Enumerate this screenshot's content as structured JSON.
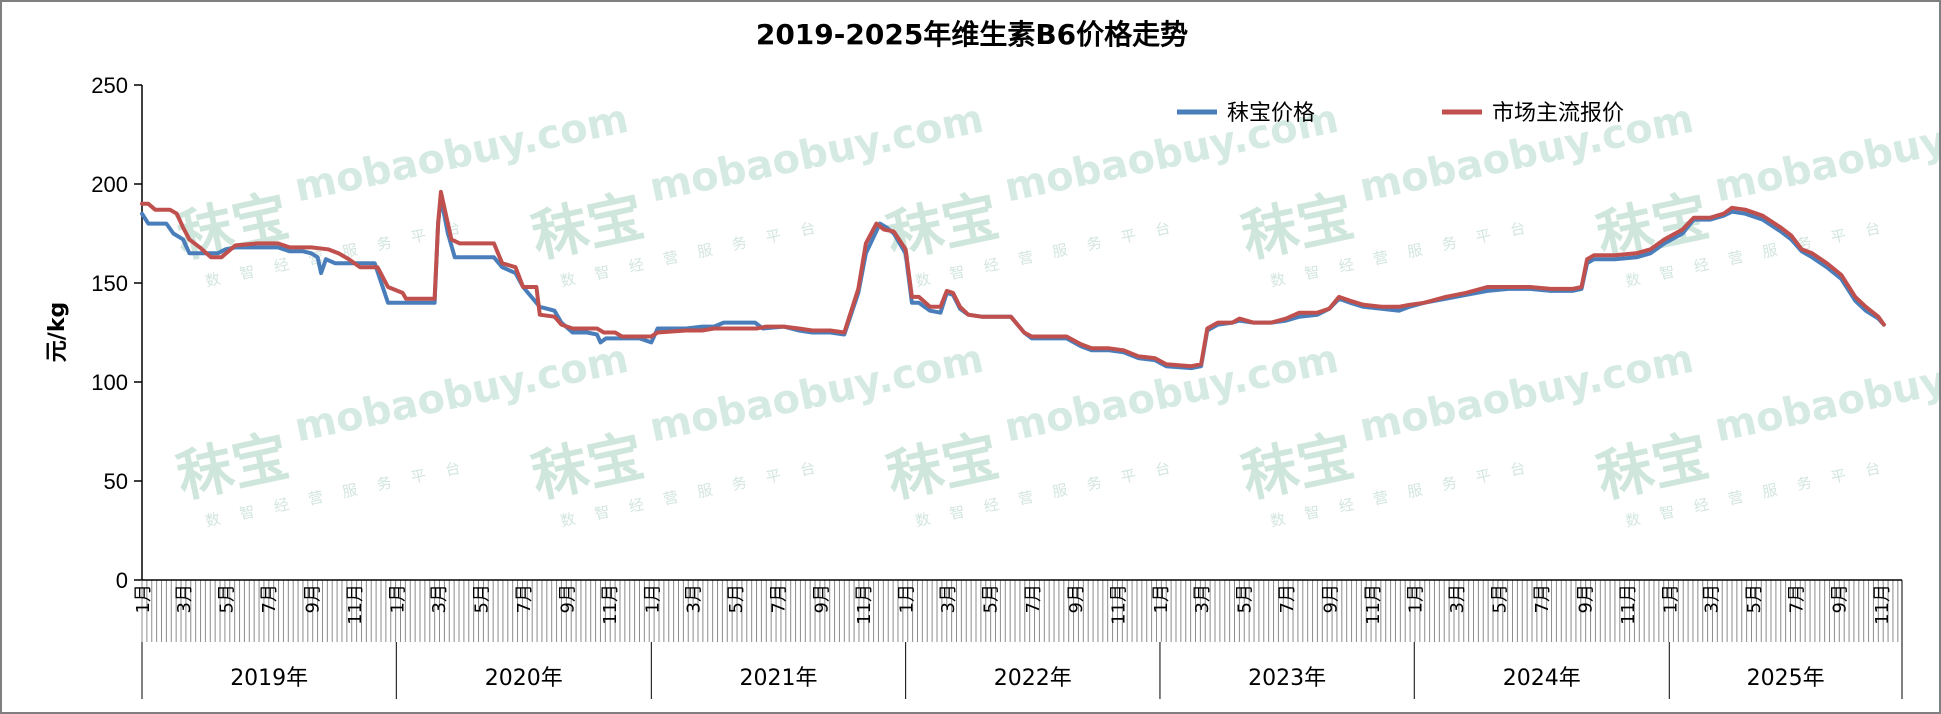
{
  "chart_data": {
    "type": "line",
    "title": "2019-2025年维生素B6价格走势",
    "ylabel": "元/kg",
    "ylim": [
      0,
      250
    ],
    "yticks": [
      0,
      50,
      100,
      150,
      200,
      250
    ],
    "x_start": "2019-01",
    "x_end": "2025-11",
    "x_unit": "month",
    "month_tick_labels": [
      "1月",
      "3月",
      "5月",
      "7月",
      "9月",
      "11月"
    ],
    "year_labels": [
      "2019年",
      "2020年",
      "2021年",
      "2022年",
      "2023年",
      "2024年",
      "2025年"
    ],
    "legend_position": "top-right",
    "series": [
      {
        "name": "秣宝价格",
        "color": "#4a7ebb",
        "points": [
          [
            "2019-01-01",
            185
          ],
          [
            "2019-01-10",
            180
          ],
          [
            "2019-02-05",
            180
          ],
          [
            "2019-02-15",
            175
          ],
          [
            "2019-03-01",
            172
          ],
          [
            "2019-03-10",
            165
          ],
          [
            "2019-04-01",
            165
          ],
          [
            "2019-04-20",
            165
          ],
          [
            "2019-05-01",
            167
          ],
          [
            "2019-05-15",
            168
          ],
          [
            "2019-06-15",
            168
          ],
          [
            "2019-07-15",
            168
          ],
          [
            "2019-08-01",
            166
          ],
          [
            "2019-08-20",
            166
          ],
          [
            "2019-09-01",
            165
          ],
          [
            "2019-09-10",
            163
          ],
          [
            "2019-09-15",
            155
          ],
          [
            "2019-09-22",
            162
          ],
          [
            "2019-10-05",
            160
          ],
          [
            "2019-11-01",
            160
          ],
          [
            "2019-12-01",
            160
          ],
          [
            "2019-12-20",
            140
          ],
          [
            "2020-01-15",
            140
          ],
          [
            "2020-02-05",
            140
          ],
          [
            "2020-02-25",
            140
          ],
          [
            "2020-03-01",
            180
          ],
          [
            "2020-03-05",
            193
          ],
          [
            "2020-03-15",
            175
          ],
          [
            "2020-03-25",
            163
          ],
          [
            "2020-05-01",
            163
          ],
          [
            "2020-05-20",
            163
          ],
          [
            "2020-06-01",
            158
          ],
          [
            "2020-06-20",
            155
          ],
          [
            "2020-07-01",
            148
          ],
          [
            "2020-07-25",
            138
          ],
          [
            "2020-08-15",
            136
          ],
          [
            "2020-08-25",
            130
          ],
          [
            "2020-09-10",
            125
          ],
          [
            "2020-10-01",
            125
          ],
          [
            "2020-10-15",
            124
          ],
          [
            "2020-10-20",
            120
          ],
          [
            "2020-10-28",
            122
          ],
          [
            "2020-11-15",
            122
          ],
          [
            "2020-12-15",
            122
          ],
          [
            "2021-01-01",
            120
          ],
          [
            "2021-01-10",
            127
          ],
          [
            "2021-02-20",
            127
          ],
          [
            "2021-03-15",
            128
          ],
          [
            "2021-04-01",
            128
          ],
          [
            "2021-04-15",
            130
          ],
          [
            "2021-05-30",
            130
          ],
          [
            "2021-06-10",
            127
          ],
          [
            "2021-07-10",
            128
          ],
          [
            "2021-08-01",
            126
          ],
          [
            "2021-08-20",
            125
          ],
          [
            "2021-09-15",
            125
          ],
          [
            "2021-10-05",
            124
          ],
          [
            "2021-10-25",
            145
          ],
          [
            "2021-11-05",
            165
          ],
          [
            "2021-11-25",
            180
          ],
          [
            "2021-12-05",
            178
          ],
          [
            "2021-12-15",
            175
          ],
          [
            "2022-01-01",
            165
          ],
          [
            "2022-01-10",
            140
          ],
          [
            "2022-01-20",
            140
          ],
          [
            "2022-02-05",
            136
          ],
          [
            "2022-02-20",
            135
          ],
          [
            "2022-03-01",
            145
          ],
          [
            "2022-03-10",
            144
          ],
          [
            "2022-03-20",
            137
          ],
          [
            "2022-04-01",
            134
          ],
          [
            "2022-04-20",
            133
          ],
          [
            "2022-06-01",
            133
          ],
          [
            "2022-06-20",
            125
          ],
          [
            "2022-07-01",
            122
          ],
          [
            "2022-08-01",
            122
          ],
          [
            "2022-08-20",
            122
          ],
          [
            "2022-09-10",
            118
          ],
          [
            "2022-09-25",
            116
          ],
          [
            "2022-10-20",
            116
          ],
          [
            "2022-11-10",
            115
          ],
          [
            "2022-12-01",
            112
          ],
          [
            "2022-12-25",
            111
          ],
          [
            "2023-01-10",
            108
          ],
          [
            "2023-02-15",
            107
          ],
          [
            "2023-03-01",
            108
          ],
          [
            "2023-03-10",
            126
          ],
          [
            "2023-03-25",
            129
          ],
          [
            "2023-04-15",
            130
          ],
          [
            "2023-04-25",
            131
          ],
          [
            "2023-05-15",
            130
          ],
          [
            "2023-06-10",
            130
          ],
          [
            "2023-07-01",
            131
          ],
          [
            "2023-07-20",
            133
          ],
          [
            "2023-08-15",
            134
          ],
          [
            "2023-09-01",
            137
          ],
          [
            "2023-09-15",
            142
          ],
          [
            "2023-10-01",
            140
          ],
          [
            "2023-10-20",
            138
          ],
          [
            "2023-11-15",
            137
          ],
          [
            "2023-12-10",
            136
          ],
          [
            "2023-12-25",
            138
          ],
          [
            "2024-01-15",
            140
          ],
          [
            "2024-02-15",
            142
          ],
          [
            "2024-03-15",
            144
          ],
          [
            "2024-04-15",
            146
          ],
          [
            "2024-05-15",
            147
          ],
          [
            "2024-06-15",
            147
          ],
          [
            "2024-07-15",
            146
          ],
          [
            "2024-08-15",
            146
          ],
          [
            "2024-08-28",
            147
          ],
          [
            "2024-09-05",
            160
          ],
          [
            "2024-09-15",
            162
          ],
          [
            "2024-10-15",
            162
          ],
          [
            "2024-11-15",
            163
          ],
          [
            "2024-12-05",
            165
          ],
          [
            "2024-12-25",
            170
          ],
          [
            "2025-01-20",
            175
          ],
          [
            "2025-02-05",
            182
          ],
          [
            "2025-03-01",
            182
          ],
          [
            "2025-03-20",
            184
          ],
          [
            "2025-04-01",
            186
          ],
          [
            "2025-04-20",
            185
          ],
          [
            "2025-05-15",
            182
          ],
          [
            "2025-06-10",
            176
          ],
          [
            "2025-06-25",
            172
          ],
          [
            "2025-07-10",
            166
          ],
          [
            "2025-07-25",
            163
          ],
          [
            "2025-08-15",
            158
          ],
          [
            "2025-09-05",
            152
          ],
          [
            "2025-09-25",
            141
          ],
          [
            "2025-10-10",
            136
          ],
          [
            "2025-10-28",
            132
          ],
          [
            "2025-11-05",
            129
          ]
        ]
      },
      {
        "name": "市场主流报价",
        "color": "#c0504d",
        "points": [
          [
            "2019-01-01",
            190
          ],
          [
            "2019-01-10",
            190
          ],
          [
            "2019-01-20",
            187
          ],
          [
            "2019-02-10",
            187
          ],
          [
            "2019-02-20",
            185
          ],
          [
            "2019-03-01",
            178
          ],
          [
            "2019-03-10",
            172
          ],
          [
            "2019-03-25",
            168
          ],
          [
            "2019-04-10",
            163
          ],
          [
            "2019-04-25",
            163
          ],
          [
            "2019-05-05",
            166
          ],
          [
            "2019-05-15",
            169
          ],
          [
            "2019-06-15",
            170
          ],
          [
            "2019-07-15",
            170
          ],
          [
            "2019-08-01",
            168
          ],
          [
            "2019-09-01",
            168
          ],
          [
            "2019-09-25",
            167
          ],
          [
            "2019-10-10",
            165
          ],
          [
            "2019-10-25",
            162
          ],
          [
            "2019-11-10",
            158
          ],
          [
            "2019-12-05",
            158
          ],
          [
            "2019-12-20",
            148
          ],
          [
            "2020-01-10",
            145
          ],
          [
            "2020-01-15",
            142
          ],
          [
            "2020-02-10",
            142
          ],
          [
            "2020-02-25",
            142
          ],
          [
            "2020-03-01",
            180
          ],
          [
            "2020-03-05",
            196
          ],
          [
            "2020-03-20",
            172
          ],
          [
            "2020-04-01",
            170
          ],
          [
            "2020-05-01",
            170
          ],
          [
            "2020-05-20",
            170
          ],
          [
            "2020-06-01",
            160
          ],
          [
            "2020-06-20",
            158
          ],
          [
            "2020-07-01",
            148
          ],
          [
            "2020-07-20",
            148
          ],
          [
            "2020-07-25",
            134
          ],
          [
            "2020-08-15",
            133
          ],
          [
            "2020-08-25",
            129
          ],
          [
            "2020-09-10",
            127
          ],
          [
            "2020-10-15",
            127
          ],
          [
            "2020-10-25",
            125
          ],
          [
            "2020-11-10",
            125
          ],
          [
            "2020-11-20",
            123
          ],
          [
            "2020-12-20",
            123
          ],
          [
            "2021-01-01",
            123
          ],
          [
            "2021-01-10",
            125
          ],
          [
            "2021-02-20",
            126
          ],
          [
            "2021-03-15",
            126
          ],
          [
            "2021-04-01",
            127
          ],
          [
            "2021-04-15",
            127
          ],
          [
            "2021-05-15",
            127
          ],
          [
            "2021-06-01",
            127
          ],
          [
            "2021-06-15",
            128
          ],
          [
            "2021-07-10",
            128
          ],
          [
            "2021-08-01",
            127
          ],
          [
            "2021-08-20",
            126
          ],
          [
            "2021-09-15",
            126
          ],
          [
            "2021-10-05",
            125
          ],
          [
            "2021-10-25",
            147
          ],
          [
            "2021-11-05",
            170
          ],
          [
            "2021-11-20",
            180
          ],
          [
            "2021-12-01",
            177
          ],
          [
            "2021-12-15",
            176
          ],
          [
            "2022-01-01",
            167
          ],
          [
            "2022-01-10",
            143
          ],
          [
            "2022-01-20",
            143
          ],
          [
            "2022-02-05",
            138
          ],
          [
            "2022-02-20",
            138
          ],
          [
            "2022-03-01",
            146
          ],
          [
            "2022-03-10",
            145
          ],
          [
            "2022-03-20",
            138
          ],
          [
            "2022-04-01",
            134
          ],
          [
            "2022-04-20",
            133
          ],
          [
            "2022-06-01",
            133
          ],
          [
            "2022-06-20",
            125
          ],
          [
            "2022-07-01",
            123
          ],
          [
            "2022-08-01",
            123
          ],
          [
            "2022-08-20",
            123
          ],
          [
            "2022-09-10",
            119
          ],
          [
            "2022-09-25",
            117
          ],
          [
            "2022-10-20",
            117
          ],
          [
            "2022-11-10",
            116
          ],
          [
            "2022-12-01",
            113
          ],
          [
            "2022-12-25",
            112
          ],
          [
            "2023-01-10",
            109
          ],
          [
            "2023-02-15",
            108
          ],
          [
            "2023-03-01",
            109
          ],
          [
            "2023-03-10",
            127
          ],
          [
            "2023-03-25",
            130
          ],
          [
            "2023-04-15",
            130
          ],
          [
            "2023-04-25",
            132
          ],
          [
            "2023-05-15",
            130
          ],
          [
            "2023-06-10",
            130
          ],
          [
            "2023-07-01",
            132
          ],
          [
            "2023-07-20",
            135
          ],
          [
            "2023-08-15",
            135
          ],
          [
            "2023-09-01",
            137
          ],
          [
            "2023-09-15",
            143
          ],
          [
            "2023-10-01",
            141
          ],
          [
            "2023-10-20",
            139
          ],
          [
            "2023-11-15",
            138
          ],
          [
            "2023-12-10",
            138
          ],
          [
            "2023-12-25",
            139
          ],
          [
            "2024-01-15",
            140
          ],
          [
            "2024-02-15",
            143
          ],
          [
            "2024-03-15",
            145
          ],
          [
            "2024-04-15",
            148
          ],
          [
            "2024-05-15",
            148
          ],
          [
            "2024-06-15",
            148
          ],
          [
            "2024-07-15",
            147
          ],
          [
            "2024-08-15",
            147
          ],
          [
            "2024-08-28",
            148
          ],
          [
            "2024-09-05",
            162
          ],
          [
            "2024-09-15",
            164
          ],
          [
            "2024-10-15",
            164
          ],
          [
            "2024-11-15",
            165
          ],
          [
            "2024-12-05",
            167
          ],
          [
            "2024-12-25",
            172
          ],
          [
            "2025-01-20",
            177
          ],
          [
            "2025-02-05",
            183
          ],
          [
            "2025-03-01",
            183
          ],
          [
            "2025-03-20",
            185
          ],
          [
            "2025-04-01",
            188
          ],
          [
            "2025-04-20",
            187
          ],
          [
            "2025-05-15",
            184
          ],
          [
            "2025-06-10",
            178
          ],
          [
            "2025-06-25",
            174
          ],
          [
            "2025-07-10",
            167
          ],
          [
            "2025-07-25",
            165
          ],
          [
            "2025-08-15",
            160
          ],
          [
            "2025-09-05",
            154
          ],
          [
            "2025-09-25",
            143
          ],
          [
            "2025-10-10",
            138
          ],
          [
            "2025-10-28",
            133
          ],
          [
            "2025-11-05",
            129
          ]
        ]
      }
    ]
  },
  "watermark": {
    "brand": "秣宝",
    "domain": "mobaobuy.com",
    "slogan": "数智经营服务平台"
  }
}
